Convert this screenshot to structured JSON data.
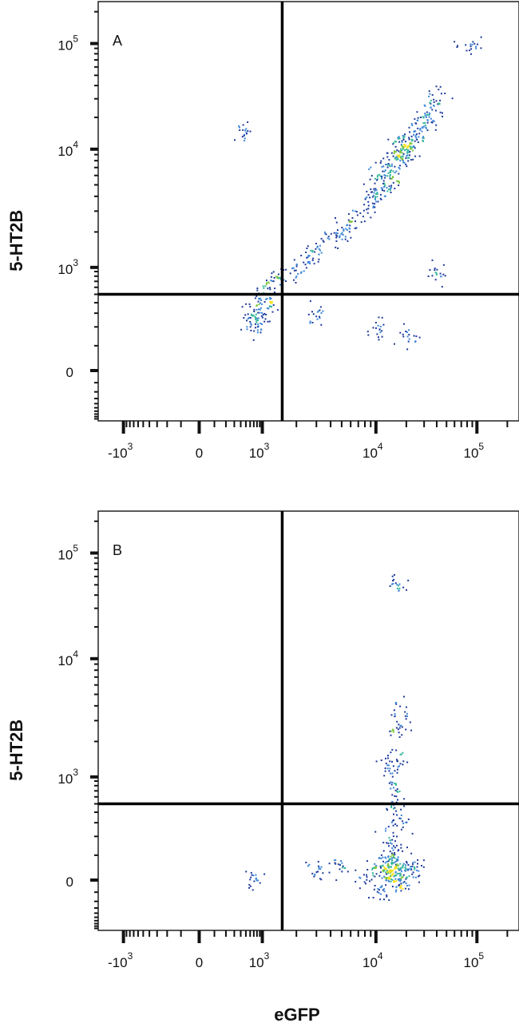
{
  "chart_data": [
    {
      "type": "scatter",
      "panel_label": "A",
      "xlabel": "",
      "ylabel": "5-HT2B",
      "x_scale": "biexponential",
      "y_scale": "biexponential",
      "xlim": [
        -1500,
        200000
      ],
      "ylim": [
        -1000,
        250000
      ],
      "x_ticks": [
        {
          "base": "-10",
          "exp": "3",
          "value": -1000
        },
        {
          "base": "0",
          "exp": "",
          "value": 0
        },
        {
          "base": "10",
          "exp": "3",
          "value": 1000
        },
        {
          "base": "10",
          "exp": "4",
          "value": 10000
        },
        {
          "base": "10",
          "exp": "5",
          "value": 100000
        }
      ],
      "y_ticks": [
        {
          "base": "0",
          "exp": "",
          "value": 0
        },
        {
          "base": "10",
          "exp": "3",
          "value": 1000
        },
        {
          "base": "10",
          "exp": "4",
          "value": 10000
        },
        {
          "base": "10",
          "exp": "5",
          "value": 100000
        }
      ],
      "quadrant_gate": {
        "x": 1500,
        "y": 500
      },
      "grid": false,
      "points": [
        [
          18000,
          10000
        ],
        [
          20000,
          11000
        ],
        [
          15000,
          8000
        ],
        [
          22000,
          13000
        ],
        [
          17000,
          9000
        ],
        [
          25000,
          15000
        ],
        [
          13000,
          7000
        ],
        [
          19000,
          12000
        ],
        [
          16000,
          10500
        ],
        [
          21000,
          9500
        ],
        [
          12000,
          5000
        ],
        [
          10000,
          4500
        ],
        [
          9000,
          4000
        ],
        [
          8000,
          3000
        ],
        [
          30000,
          18000
        ],
        [
          35000,
          25000
        ],
        [
          40000,
          30000
        ],
        [
          28000,
          20000
        ],
        [
          11000,
          6000
        ],
        [
          14000,
          5500
        ],
        [
          6000,
          2500
        ],
        [
          5000,
          2000
        ],
        [
          4000,
          1800
        ],
        [
          3000,
          1500
        ],
        [
          2500,
          1200
        ],
        [
          2000,
          1000
        ],
        [
          1500,
          800
        ],
        [
          1200,
          700
        ],
        [
          1000,
          500
        ],
        [
          800,
          400
        ],
        [
          700,
          300
        ],
        [
          900,
          250
        ],
        [
          600,
          200
        ],
        [
          1100,
          350
        ],
        [
          3000,
          300
        ],
        [
          10000,
          200
        ],
        [
          20000,
          150
        ],
        [
          40000,
          900
        ],
        [
          80000,
          95000
        ],
        [
          500,
          15000
        ]
      ]
    },
    {
      "type": "scatter",
      "panel_label": "B",
      "xlabel": "eGFP",
      "ylabel": "5-HT2B",
      "x_scale": "biexponential",
      "y_scale": "biexponential",
      "xlim": [
        -1500,
        200000
      ],
      "ylim": [
        -1000,
        250000
      ],
      "x_ticks": [
        {
          "base": "-10",
          "exp": "3",
          "value": -1000
        },
        {
          "base": "0",
          "exp": "",
          "value": 0
        },
        {
          "base": "10",
          "exp": "3",
          "value": 1000
        },
        {
          "base": "10",
          "exp": "4",
          "value": 10000
        },
        {
          "base": "10",
          "exp": "5",
          "value": 100000
        }
      ],
      "y_ticks": [
        {
          "base": "0",
          "exp": "",
          "value": 0
        },
        {
          "base": "10",
          "exp": "3",
          "value": 1000
        },
        {
          "base": "10",
          "exp": "4",
          "value": 10000
        },
        {
          "base": "10",
          "exp": "5",
          "value": 100000
        }
      ],
      "quadrant_gate": {
        "x": 1500,
        "y": 500
      },
      "grid": false,
      "points": [
        [
          14000,
          50
        ],
        [
          15000,
          20
        ],
        [
          16000,
          80
        ],
        [
          13000,
          0
        ],
        [
          17000,
          40
        ],
        [
          12000,
          60
        ],
        [
          18000,
          -20
        ],
        [
          15000,
          120
        ],
        [
          14000,
          200
        ],
        [
          16000,
          300
        ],
        [
          14500,
          30
        ],
        [
          15500,
          -40
        ],
        [
          13500,
          100
        ],
        [
          15000,
          500
        ],
        [
          14500,
          800
        ],
        [
          15000,
          1500
        ],
        [
          16000,
          2500
        ],
        [
          13000,
          1200
        ],
        [
          20000,
          30
        ],
        [
          10000,
          40
        ],
        [
          8000,
          20
        ],
        [
          25000,
          50
        ],
        [
          5000,
          60
        ],
        [
          3000,
          40
        ],
        [
          16000,
          50000
        ],
        [
          17000,
          3500
        ],
        [
          11000,
          -100
        ],
        [
          700,
          0
        ]
      ]
    }
  ],
  "colors": {
    "low": "#1f3a9a",
    "mid_low": "#3c86d6",
    "mid": "#35b79a",
    "mid_high": "#7cc43c",
    "high": "#f2e21e",
    "peak": "#f08a1c",
    "max": "#e3261c",
    "gate": "#000000"
  }
}
